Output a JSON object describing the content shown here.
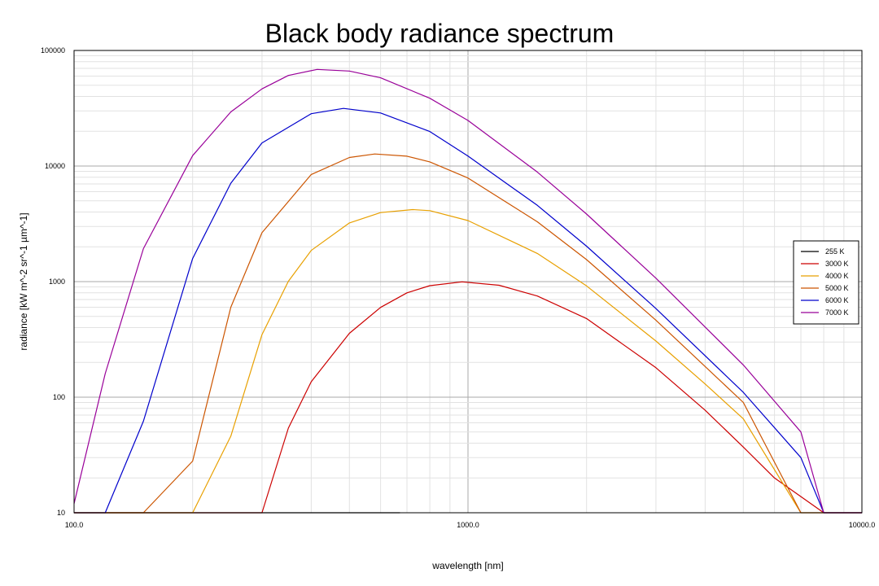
{
  "chart_data": {
    "type": "line",
    "title": "Black body radiance spectrum",
    "xlabel": "wavelength [nm]",
    "ylabel": "radiance [kW m^-2 sr^-1 µm^-1]",
    "x_scale": "log",
    "y_scale": "log",
    "xlim": [
      100,
      10000
    ],
    "ylim": [
      10,
      100000
    ],
    "x_ticks": [
      {
        "value": 100,
        "label": "100.0"
      },
      {
        "value": 1000,
        "label": "1000.0"
      },
      {
        "value": 10000,
        "label": "10000.0"
      }
    ],
    "y_ticks": [
      {
        "value": 10,
        "label": "10"
      },
      {
        "value": 100,
        "label": "100"
      },
      {
        "value": 1000,
        "label": "1000"
      },
      {
        "value": 10000,
        "label": "10000"
      },
      {
        "value": 100000,
        "label": "100000"
      }
    ],
    "grid": true,
    "legend_position": "right",
    "series": [
      {
        "name": "255 K",
        "temperature": 255,
        "color": "#000000",
        "x": [
          100,
          200,
          300,
          400,
          500,
          600,
          672
        ],
        "y": [
          10,
          10,
          10,
          10,
          10,
          10,
          10
        ]
      },
      {
        "name": "3000 K",
        "temperature": 3000,
        "color": "#cc0000",
        "x": [
          100,
          300,
          350,
          400,
          500,
          600,
          700,
          800,
          966,
          1200,
          1500,
          2000,
          3000,
          4000,
          5000,
          6000,
          8000,
          10000
        ],
        "y": [
          10,
          10,
          54,
          136,
          357,
          598,
          799,
          922,
          995,
          930,
          750,
          479,
          180,
          77,
          37,
          20,
          10,
          10
        ]
      },
      {
        "name": "4000 K",
        "temperature": 4000,
        "color": "#e8a000",
        "x": [
          100,
          200,
          250,
          300,
          350,
          400,
          500,
          600,
          724,
          800,
          1000,
          1500,
          2000,
          3000,
          4000,
          5000,
          7000,
          10000
        ],
        "y": [
          10,
          10,
          46,
          348,
          1006,
          1860,
          3219,
          3957,
          4200,
          4110,
          3376,
          1752,
          918,
          306,
          130,
          65,
          10,
          10
        ]
      },
      {
        "name": "5000 K",
        "temperature": 5000,
        "color": "#cc5500",
        "x": [
          100,
          150,
          200,
          250,
          300,
          400,
          500,
          580,
          700,
          800,
          1000,
          1500,
          2000,
          3000,
          5000,
          7000,
          10000
        ],
        "y": [
          10,
          10,
          28,
          600,
          2650,
          8445,
          11860,
          12720,
          12170,
          10860,
          7885,
          3295,
          1550,
          464,
          90,
          10,
          10
        ]
      },
      {
        "name": "6000 K",
        "temperature": 6000,
        "color": "#0000cc",
        "x": [
          100,
          120,
          150,
          200,
          250,
          300,
          400,
          483,
          600,
          800,
          1000,
          1500,
          2000,
          3000,
          5000,
          7000,
          8000,
          10000
        ],
        "y": [
          10,
          10,
          62,
          1585,
          7100,
          15860,
          28350,
          31500,
          28790,
          19880,
          12210,
          4570,
          2025,
          585,
          110,
          30,
          10,
          10
        ]
      },
      {
        "name": "7000 K",
        "temperature": 7000,
        "color": "#990099",
        "x": [
          100,
          120,
          150,
          200,
          250,
          300,
          350,
          414,
          500,
          600,
          800,
          1000,
          1500,
          2000,
          3000,
          5000,
          7000,
          8000,
          10000
        ],
        "y": [
          12,
          160,
          1930,
          12300,
          29420,
          46500,
          60800,
          68500,
          66300,
          58000,
          38600,
          24800,
          8870,
          3840,
          1070,
          190,
          50,
          10,
          10
        ]
      }
    ]
  }
}
